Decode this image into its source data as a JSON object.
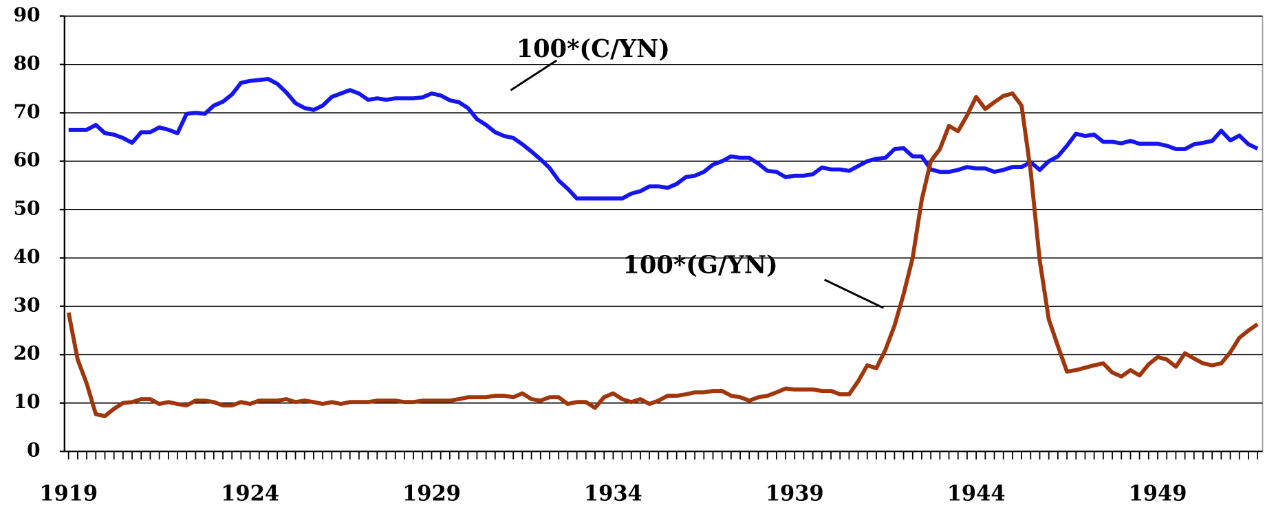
{
  "chart_data": {
    "type": "line",
    "categories": [
      "1919",
      null,
      null,
      null,
      null,
      null,
      null,
      null,
      null,
      null,
      null,
      null,
      null,
      null,
      null,
      null,
      null,
      null,
      null,
      null,
      "1924",
      null,
      null,
      null,
      null,
      null,
      null,
      null,
      null,
      null,
      null,
      null,
      null,
      null,
      null,
      null,
      null,
      null,
      null,
      null,
      "1929",
      null,
      null,
      null,
      null,
      null,
      null,
      null,
      null,
      null,
      null,
      null,
      null,
      null,
      null,
      null,
      null,
      null,
      null,
      null,
      "1934",
      null,
      null,
      null,
      null,
      null,
      null,
      null,
      null,
      null,
      null,
      null,
      null,
      null,
      null,
      null,
      null,
      null,
      null,
      null,
      "1939",
      null,
      null,
      null,
      null,
      null,
      null,
      null,
      null,
      null,
      null,
      null,
      null,
      null,
      null,
      null,
      null,
      null,
      null,
      null,
      "1944",
      null,
      null,
      null,
      null,
      null,
      null,
      null,
      null,
      null,
      null,
      null,
      null,
      null,
      null,
      null,
      null,
      null,
      null,
      null,
      "1949",
      null,
      null,
      null,
      null,
      null,
      null,
      null,
      null,
      null,
      null,
      null
    ],
    "series": [
      {
        "name": "100*(C/YN)",
        "color": "#1515f0",
        "values": [
          66.5,
          66.5,
          66.5,
          67.5,
          65.8,
          65.5,
          64.8,
          63.8,
          66,
          66,
          67,
          66.5,
          65.8,
          69.8,
          70,
          69.8,
          71.5,
          72.3,
          73.8,
          76.2,
          76.6,
          76.8,
          77,
          76,
          74.2,
          72,
          71,
          70.6,
          71.5,
          73.3,
          74,
          74.7,
          74,
          72.7,
          73,
          72.7,
          73,
          73,
          73,
          73.2,
          74,
          73.6,
          72.6,
          72.2,
          71,
          68.7,
          67.5,
          66,
          65.2,
          64.8,
          63.5,
          62,
          60.4,
          58.6,
          56,
          54.3,
          52.3,
          52.3,
          52.3,
          52.3,
          52.3,
          52.3,
          53.3,
          53.8,
          54.8,
          54.8,
          54.5,
          55.3,
          56.7,
          57,
          57.8,
          59.3,
          60,
          61,
          60.7,
          60.7,
          59.5,
          58,
          57.8,
          56.7,
          57,
          57,
          57.3,
          58.7,
          58.3,
          58.3,
          58,
          59,
          60,
          60.5,
          60.7,
          62.5,
          62.7,
          61,
          61,
          58.3,
          57.8,
          57.8,
          58.2,
          58.8,
          58.5,
          58.5,
          57.8,
          58.2,
          58.8,
          58.8,
          59.8,
          58.2,
          60,
          61,
          63.2,
          65.7,
          65.2,
          65.5,
          64,
          64,
          63.7,
          64.2,
          63.6,
          63.6,
          63.6,
          63.2,
          62.5,
          62.5,
          63.5,
          63.8,
          64.2,
          66.3,
          64.3,
          65.3,
          63.5,
          62.6
        ]
      },
      {
        "name": "100*(G/YN)",
        "color": "#a0360c",
        "values": [
          28.7,
          19,
          14,
          7.7,
          7.3,
          8.8,
          10,
          10.2,
          10.8,
          10.8,
          9.8,
          10.2,
          9.8,
          9.5,
          10.5,
          10.5,
          10.2,
          9.5,
          9.5,
          10.2,
          9.8,
          10.5,
          10.5,
          10.5,
          10.8,
          10.2,
          10.5,
          10.2,
          9.8,
          10.2,
          9.8,
          10.2,
          10.2,
          10.2,
          10.5,
          10.5,
          10.5,
          10.2,
          10.2,
          10.5,
          10.5,
          10.5,
          10.5,
          10.8,
          11.2,
          11.2,
          11.2,
          11.5,
          11.5,
          11.2,
          12,
          10.8,
          10.5,
          11.2,
          11.2,
          9.8,
          10.2,
          10.2,
          9,
          11.2,
          12,
          10.8,
          10.2,
          10.8,
          9.8,
          10.5,
          11.5,
          11.5,
          11.8,
          12.2,
          12.2,
          12.5,
          12.5,
          11.5,
          11.2,
          10.5,
          11.2,
          11.5,
          12.2,
          13,
          12.8,
          12.8,
          12.8,
          12.5,
          12.5,
          11.8,
          11.8,
          14.5,
          17.8,
          17.2,
          21,
          26,
          32.5,
          40,
          52,
          60,
          62.5,
          67.3,
          66.2,
          69.5,
          73.3,
          70.8,
          72.2,
          73.5,
          74,
          71.5,
          58,
          39.5,
          27.3,
          21.8,
          16.5,
          16.8,
          17.3,
          17.8,
          18.2,
          16.3,
          15.5,
          16.8,
          15.7,
          18,
          19.5,
          19,
          17.5,
          20.3,
          19.2,
          18.2,
          17.8,
          18.2,
          20.5,
          23.5,
          25,
          26.3
        ]
      }
    ],
    "ylim": [
      0,
      90
    ],
    "yticks": [
      0,
      10,
      20,
      30,
      40,
      50,
      60,
      70,
      80,
      90
    ],
    "grid": true,
    "annotations": [
      "100*(C/YN)",
      "100*(G/YN)"
    ]
  }
}
